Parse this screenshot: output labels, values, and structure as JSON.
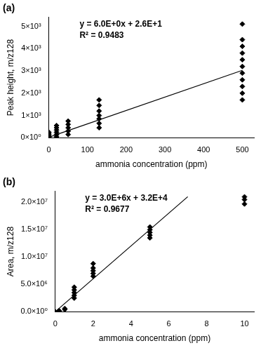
{
  "chart_data": [
    {
      "type": "scatter",
      "title": "(a)",
      "x_label": "ammonia concentration (ppm)",
      "y_label": "Peak height, m/z128",
      "xlim": [
        0,
        530
      ],
      "xticks": [
        0,
        100,
        200,
        300,
        400,
        500
      ],
      "ylim": [
        0,
        5400
      ],
      "yticks": [
        {
          "value": 0,
          "label": "0×10⁰"
        },
        {
          "value": 1000,
          "label": "1×10³"
        },
        {
          "value": 2000,
          "label": "2×10³"
        },
        {
          "value": 3000,
          "label": "3×10³"
        },
        {
          "value": 4000,
          "label": "4×10³"
        },
        {
          "value": 5000,
          "label": "5×10³"
        }
      ],
      "grid": false,
      "annotations": [
        "y = 6.0E+0x + 2.6E+1",
        "R² = 0.9483"
      ],
      "series": [
        {
          "type": "scatter",
          "color": "#000000",
          "marker": "diamond",
          "x": [
            0,
            0,
            0,
            0,
            0,
            0,
            0,
            20,
            20,
            20,
            20,
            20,
            20,
            50,
            50,
            50,
            50,
            50,
            130,
            130,
            130,
            130,
            130,
            130,
            130,
            500,
            500,
            500,
            500,
            500,
            500,
            500,
            500,
            500,
            500,
            500
          ],
          "values": [
            0,
            30,
            60,
            100,
            150,
            200,
            250,
            50,
            150,
            250,
            350,
            450,
            550,
            150,
            300,
            450,
            600,
            750,
            450,
            650,
            850,
            1000,
            1200,
            1450,
            1700,
            1700,
            2000,
            2300,
            2600,
            2900,
            3200,
            3500,
            3800,
            4100,
            4400,
            5100
          ]
        },
        {
          "type": "line",
          "color": "#000000",
          "line_style": "solid",
          "x": [
            0,
            500
          ],
          "values": [
            26,
            3026
          ]
        }
      ]
    },
    {
      "type": "scatter",
      "title": "(b)",
      "x_label": "ammonia concentration (ppm)",
      "y_label": "Area, m/z128",
      "xlim": [
        0,
        10.5
      ],
      "xticks": [
        0,
        2,
        4,
        6,
        8,
        10
      ],
      "ylim": [
        0,
        22000000
      ],
      "yticks": [
        {
          "value": 0,
          "label": "0.0×10⁰"
        },
        {
          "value": 5000000,
          "label": "5.0×10⁶"
        },
        {
          "value": 10000000,
          "label": "1.0×10⁷"
        },
        {
          "value": 15000000,
          "label": "1.5×10⁷"
        },
        {
          "value": 20000000,
          "label": "2.0×10⁷"
        }
      ],
      "grid": false,
      "annotations": [
        "y = 3.0E+6x + 3.2E+4",
        "R² = 0.9677"
      ],
      "series": [
        {
          "type": "scatter",
          "color": "#000000",
          "marker": "diamond",
          "x": [
            0,
            0.2,
            0.2,
            0.5,
            0.5,
            1,
            1,
            1,
            1,
            1,
            2,
            2,
            2,
            2,
            2,
            5,
            5,
            5,
            5,
            5,
            10,
            10,
            10
          ],
          "values": [
            0,
            100000,
            200000,
            400000,
            600000,
            2500000,
            3000000,
            3500000,
            4000000,
            4500000,
            6500000,
            7000000,
            7500000,
            8000000,
            8800000,
            13500000,
            14000000,
            14500000,
            15000000,
            15500000,
            19700000,
            20500000,
            21000000
          ]
        },
        {
          "type": "line",
          "color": "#000000",
          "line_style": "solid",
          "x": [
            0,
            7
          ],
          "values": [
            32000,
            21032000
          ]
        }
      ]
    }
  ]
}
